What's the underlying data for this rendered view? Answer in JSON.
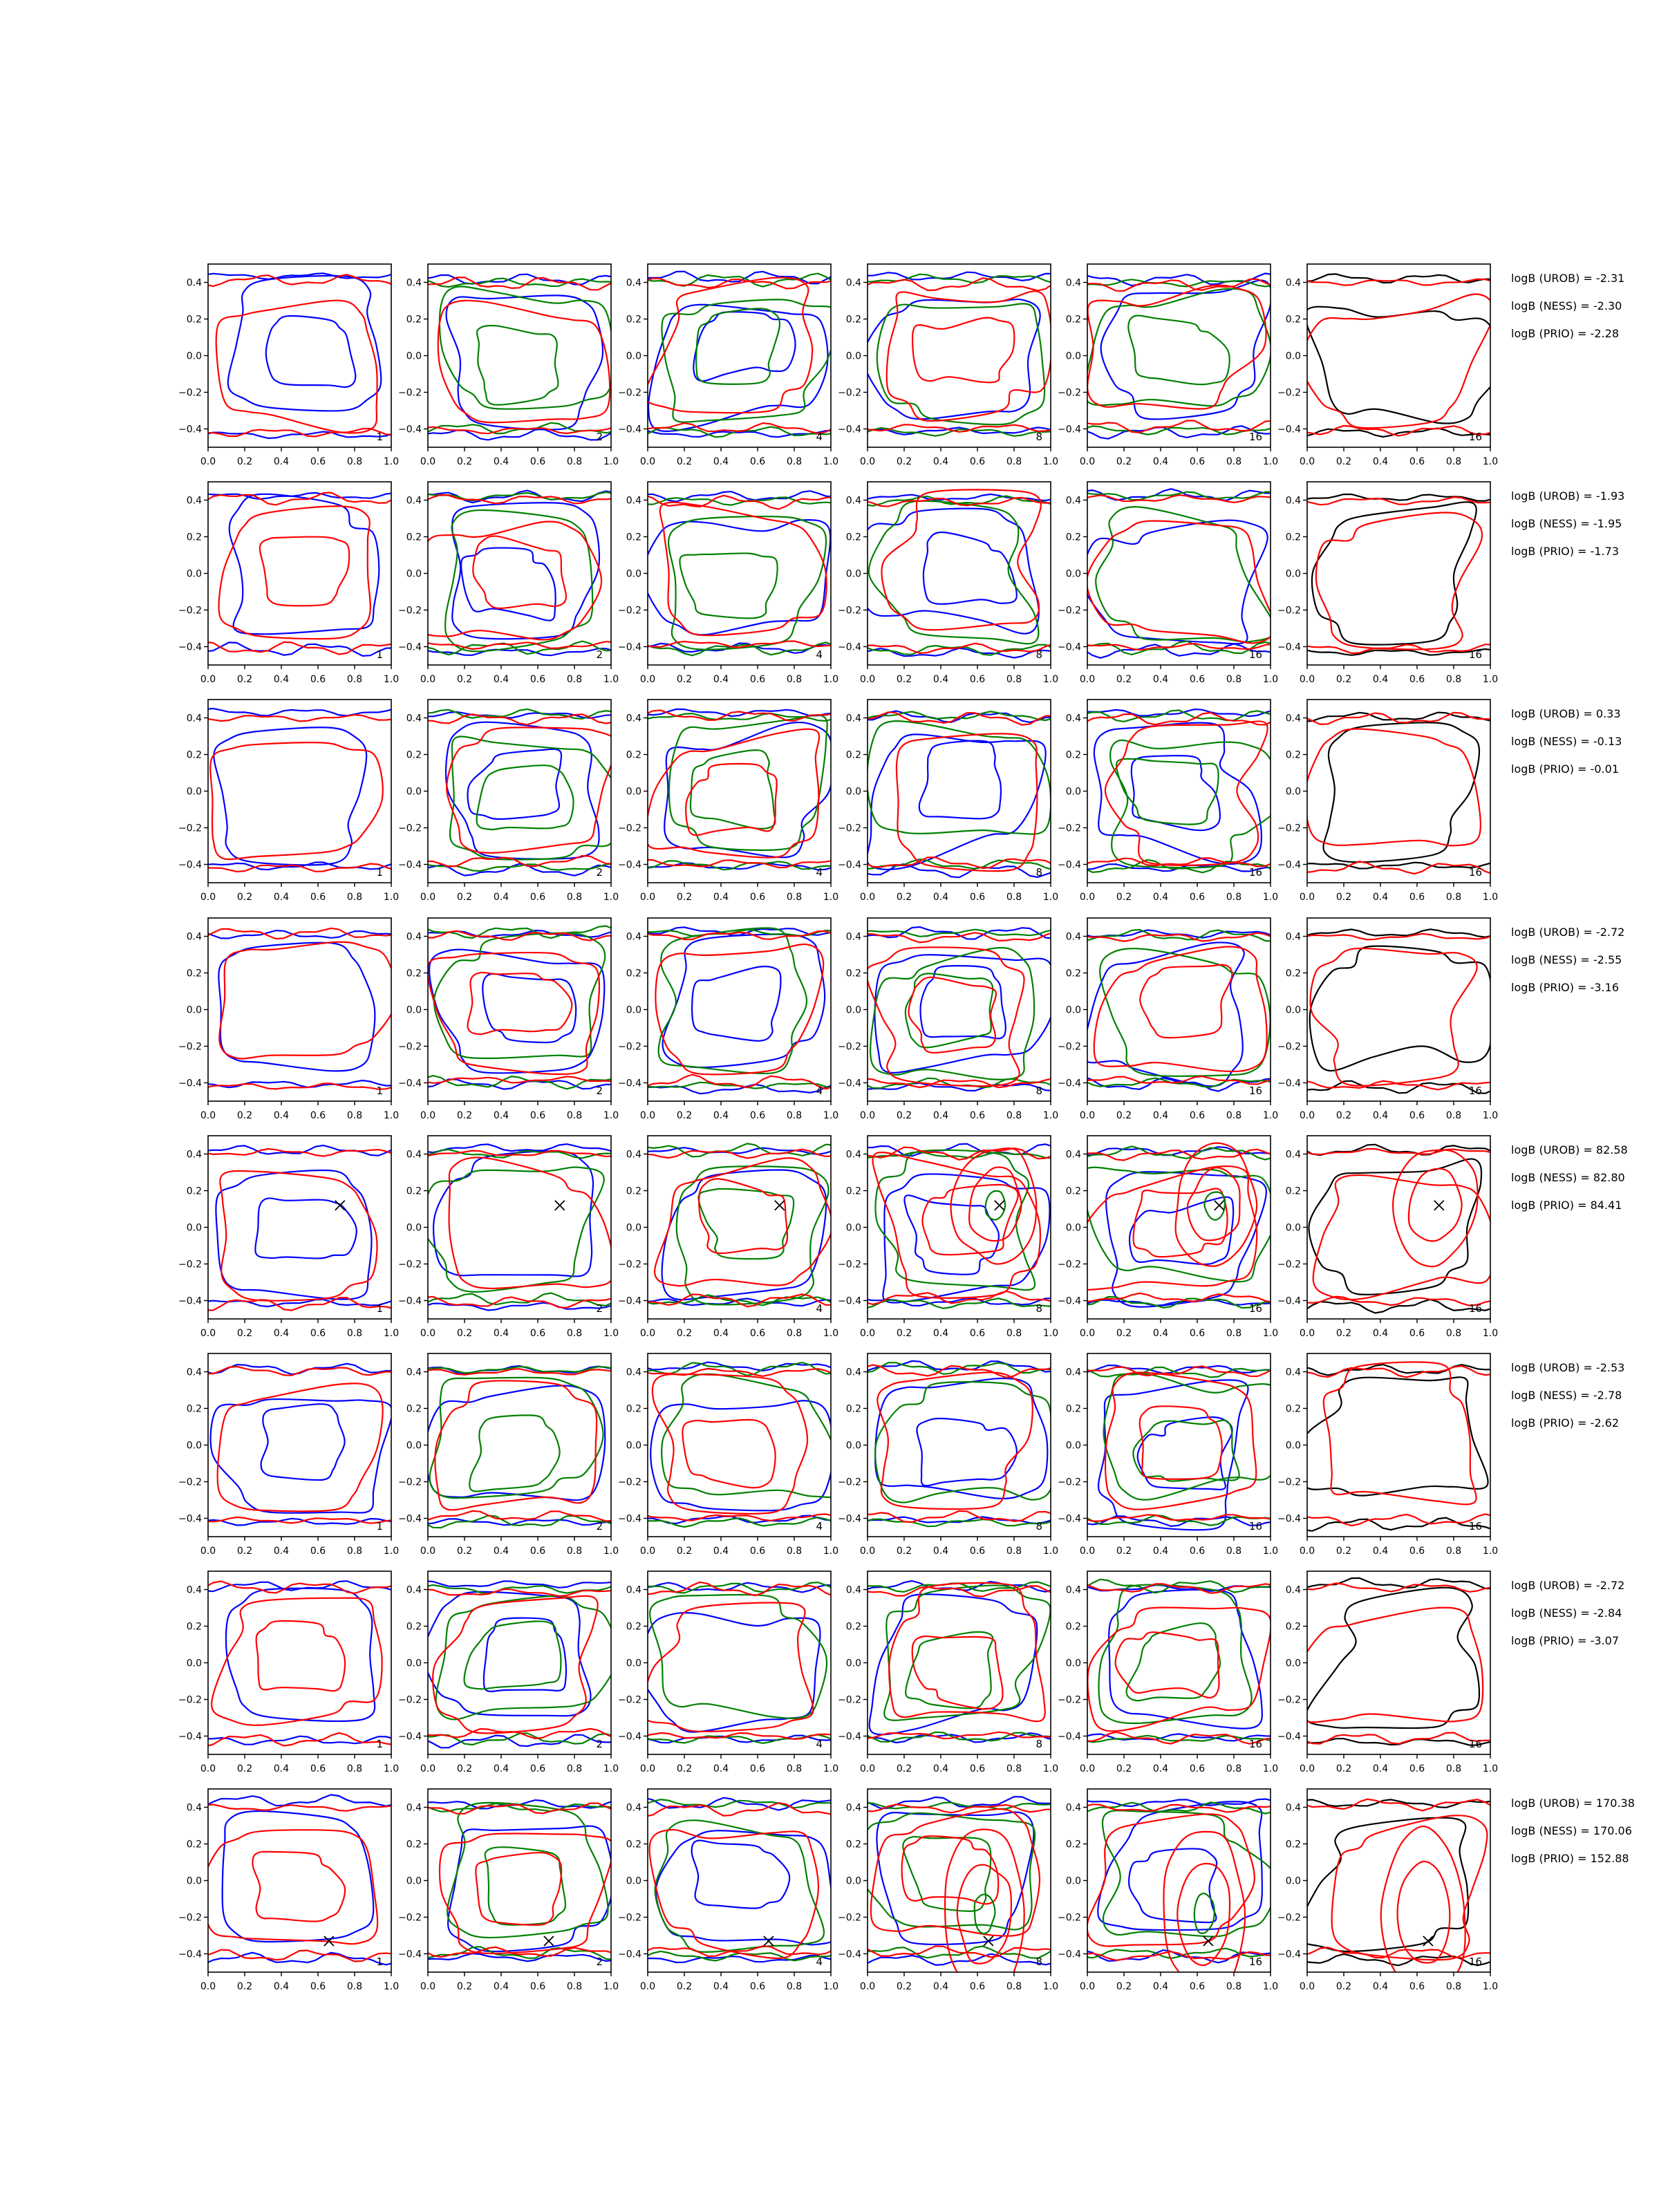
{
  "figure": {
    "colors": {
      "blue": "#0000ff",
      "green": "#008000",
      "red": "#ff0000",
      "black": "#000000",
      "axes": "#000000",
      "background": "#ffffff"
    },
    "column_panel_labels": [
      "1",
      "2",
      "4",
      "8",
      "16",
      "16"
    ],
    "x_tick_labels": [
      "0.0",
      "0.2",
      "0.4",
      "0.6",
      "0.8",
      "1.0"
    ],
    "y_tick_labels": [
      "0.4",
      "0.2",
      "0.0",
      "−0.2",
      "−0.4"
    ],
    "layout_note_free": true
  },
  "chart_data": {
    "type": "contour",
    "grid": {
      "rows": 8,
      "columns": 6
    },
    "xlim": [
      0.0,
      1.0
    ],
    "ylim": [
      -0.5,
      0.5
    ],
    "xticks": [
      0.0,
      0.2,
      0.4,
      0.6,
      0.8,
      1.0
    ],
    "yticks": [
      -0.4,
      -0.2,
      0.0,
      0.2,
      0.4
    ],
    "rows": [
      {
        "annotations": [
          "logB (UROB) = -2.31",
          "logB (NESS) = -2.30",
          "logB (PRIO) = -2.28"
        ],
        "marker": null
      },
      {
        "annotations": [
          "logB (UROB) = -1.93",
          "logB (NESS) = -1.95",
          "logB (PRIO) = -1.73"
        ],
        "marker": null
      },
      {
        "annotations": [
          "logB (UROB) = 0.33",
          "logB (NESS) = -0.13",
          "logB (PRIO) = -0.01"
        ],
        "marker": null
      },
      {
        "annotations": [
          "logB (UROB) = -2.72",
          "logB (NESS) = -2.55",
          "logB (PRIO) = -3.16"
        ],
        "marker": null
      },
      {
        "annotations": [
          "logB (UROB) = 82.58",
          "logB (NESS) = 82.80",
          "logB (PRIO) = 84.41"
        ],
        "marker": {
          "x": 0.72,
          "y": 0.12
        }
      },
      {
        "annotations": [
          "logB (UROB) = -2.53",
          "logB (NESS) = -2.78",
          "logB (PRIO) = -2.62"
        ],
        "marker": null
      },
      {
        "annotations": [
          "logB (UROB) = -2.72",
          "logB (NESS) = -2.84",
          "logB (PRIO) = -3.07"
        ],
        "marker": null
      },
      {
        "annotations": [
          "logB (UROB) = 170.38",
          "logB (NESS) = 170.06",
          "logB (PRIO) = 152.88"
        ],
        "marker": {
          "x": 0.66,
          "y": -0.33
        }
      }
    ]
  }
}
